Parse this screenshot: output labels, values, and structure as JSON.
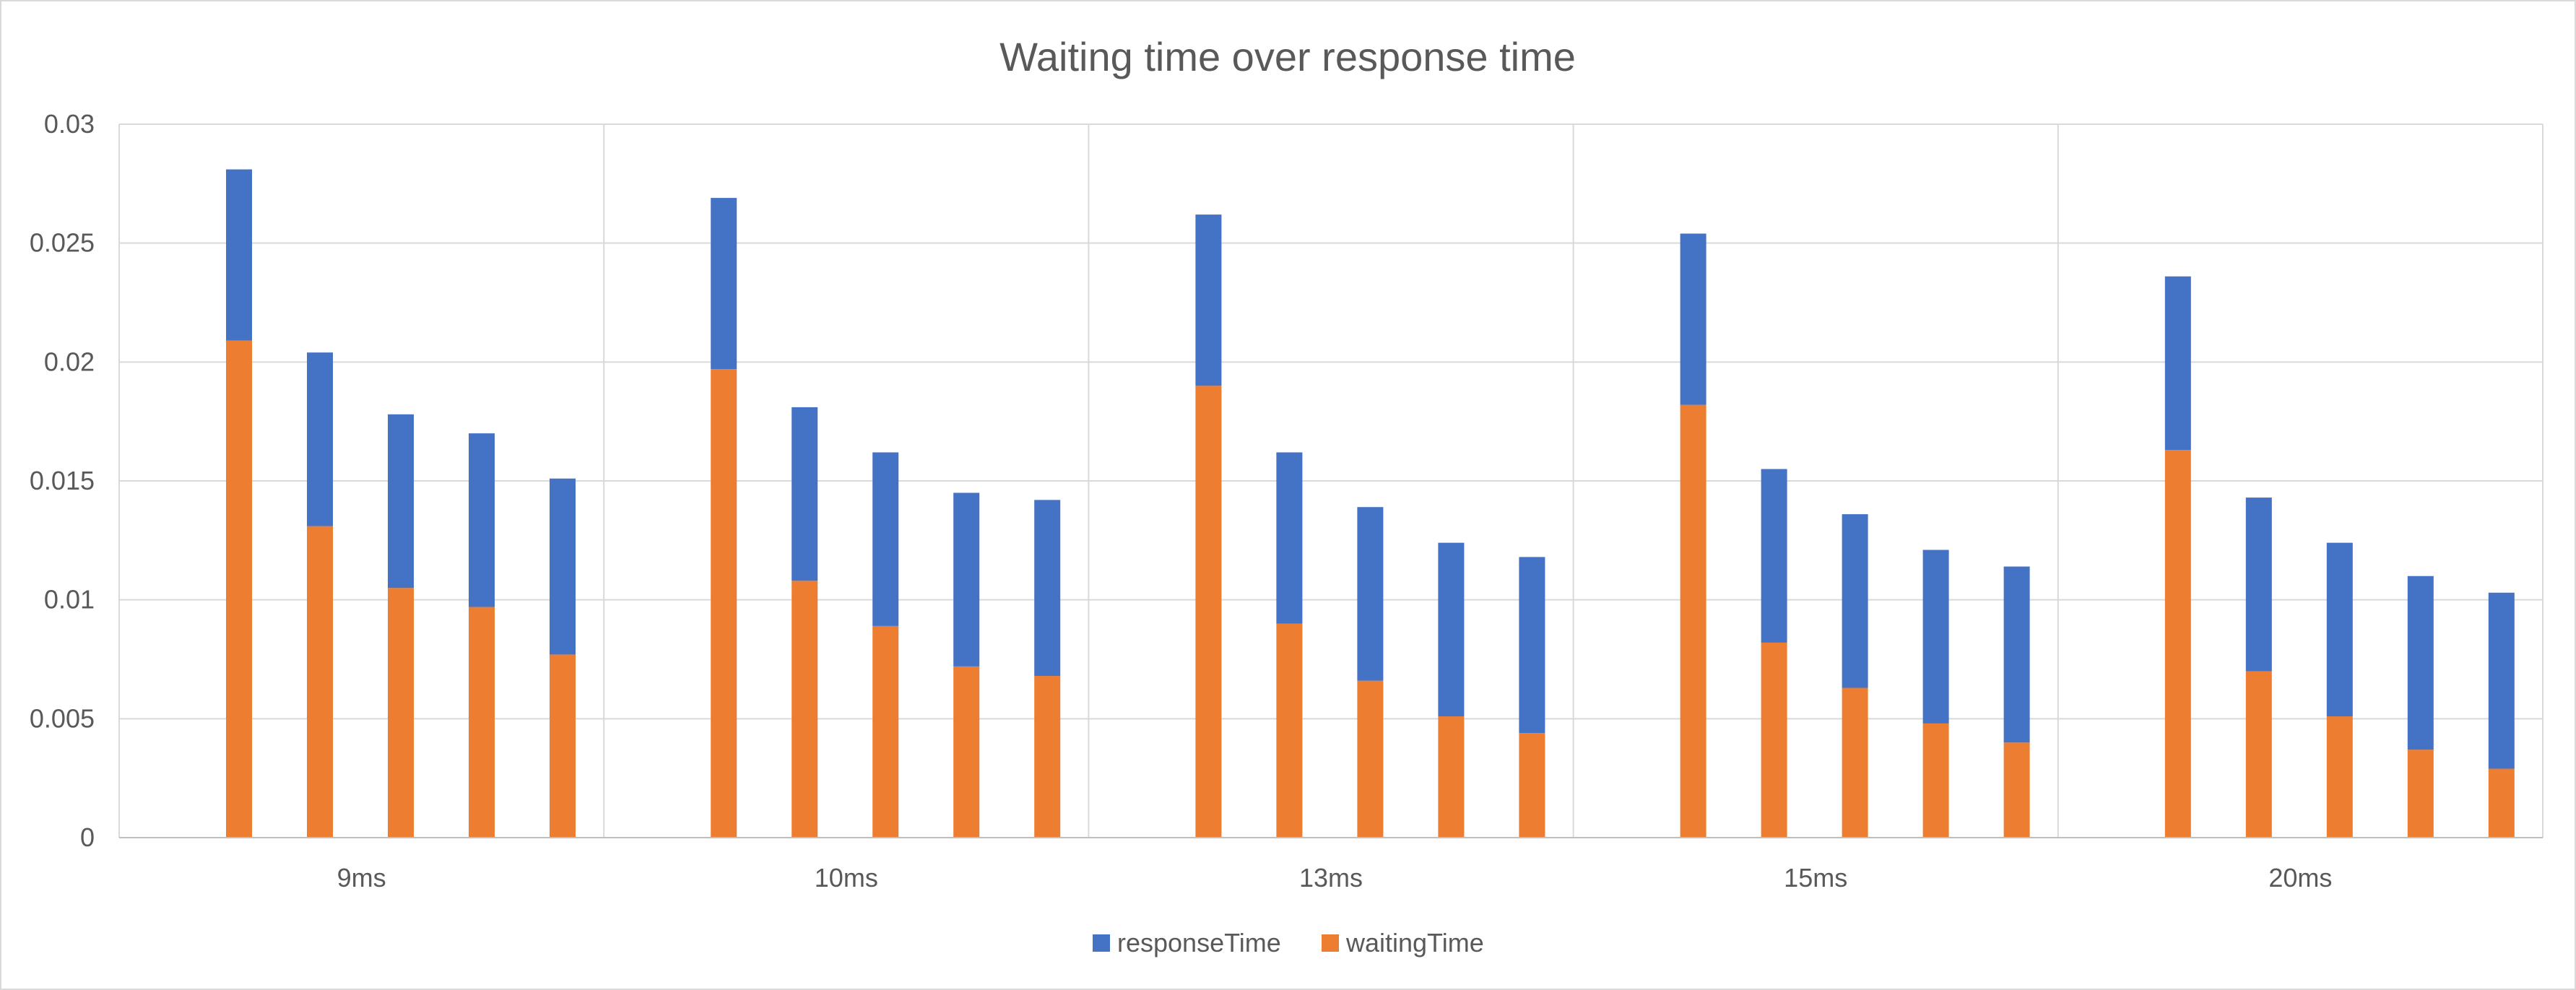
{
  "chart_data": {
    "type": "bar",
    "stacked": true,
    "title": "Waiting time over response time",
    "xlabel": "",
    "ylabel": "",
    "ylim": [
      0,
      0.03
    ],
    "yticks": [
      "0",
      "0.005",
      "0.01",
      "0.015",
      "0.02",
      "0.025",
      "0.03"
    ],
    "grid": true,
    "legend_position": "bottom",
    "groups": [
      "9ms",
      "10ms",
      "13ms",
      "15ms",
      "20ms"
    ],
    "bars_per_group": 5,
    "series": [
      {
        "name": "responseTime",
        "color": "#4472C4",
        "values": [
          [
            0.0072,
            0.0073,
            0.0073,
            0.0073,
            0.0074
          ],
          [
            0.0072,
            0.0073,
            0.0073,
            0.0073,
            0.0074
          ],
          [
            0.0072,
            0.0072,
            0.0073,
            0.0073,
            0.0074
          ],
          [
            0.0072,
            0.0073,
            0.0073,
            0.0073,
            0.0074
          ],
          [
            0.0073,
            0.0073,
            0.0073,
            0.0073,
            0.0074
          ]
        ]
      },
      {
        "name": "waitingTime",
        "color": "#ED7D31",
        "values": [
          [
            0.0209,
            0.0131,
            0.0105,
            0.0097,
            0.0077
          ],
          [
            0.0197,
            0.0108,
            0.0089,
            0.0072,
            0.0068
          ],
          [
            0.019,
            0.009,
            0.0066,
            0.0051,
            0.0044
          ],
          [
            0.0182,
            0.0082,
            0.0063,
            0.0048,
            0.004
          ],
          [
            0.0163,
            0.007,
            0.0051,
            0.0037,
            0.0029
          ]
        ]
      }
    ]
  }
}
